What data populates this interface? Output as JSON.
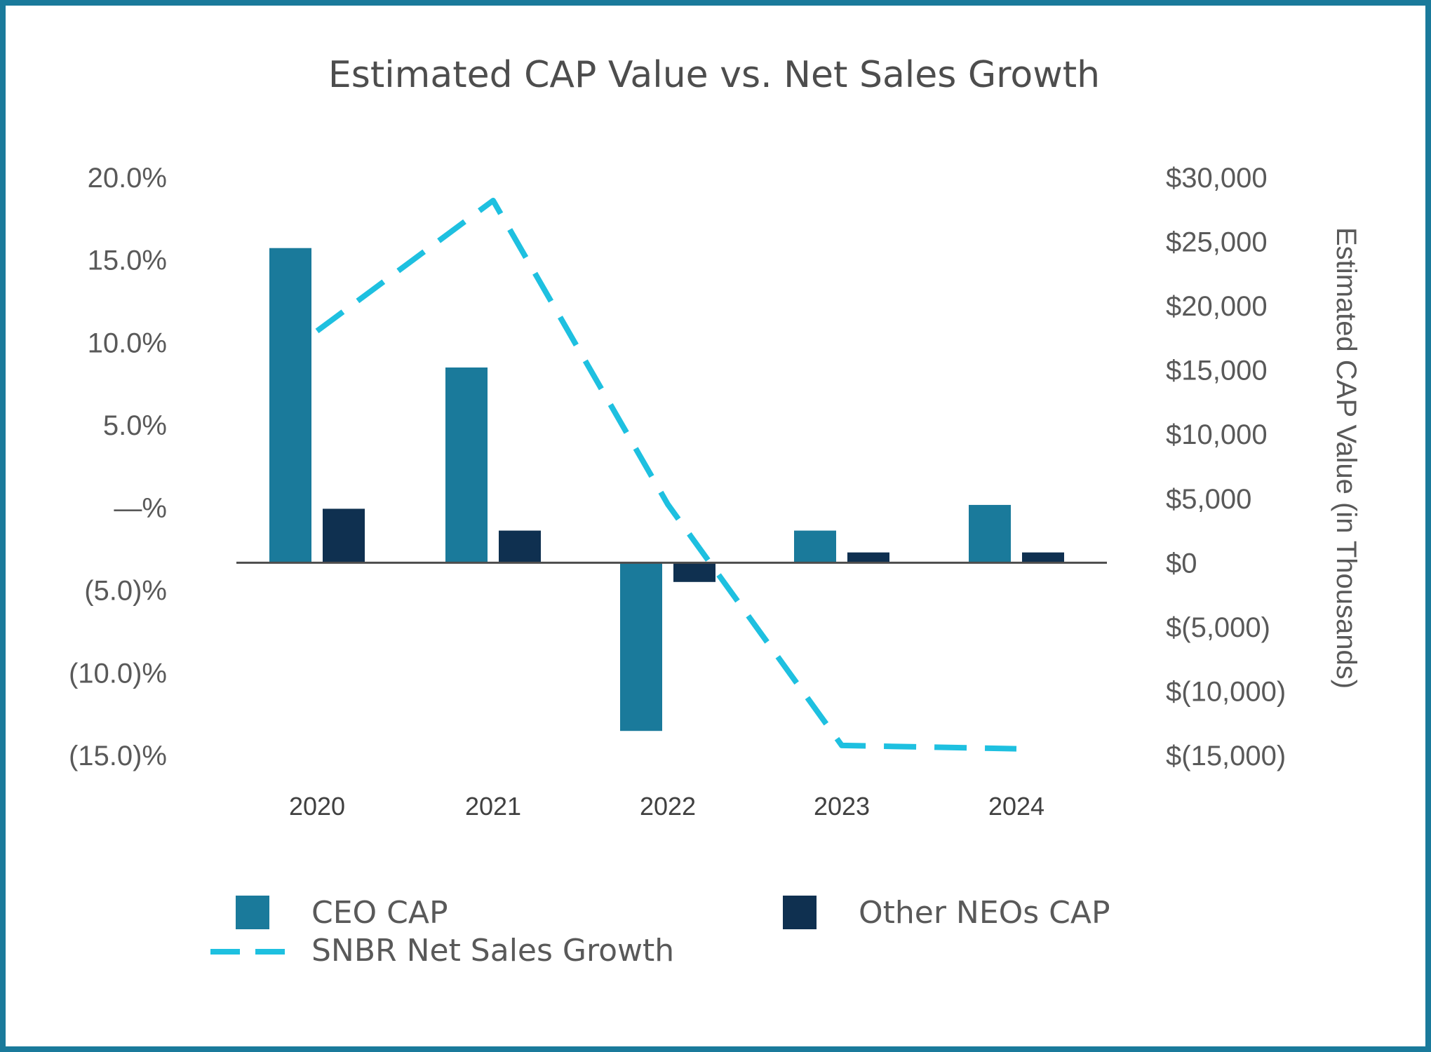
{
  "chart_data": {
    "type": "bar",
    "title": "Estimated CAP Value vs. Net Sales Growth",
    "categories": [
      "2020",
      "2021",
      "2022",
      "2023",
      "2024"
    ],
    "series": [
      {
        "name": "CEO CAP",
        "kind": "bar",
        "axis": "right",
        "color": "#1a7a9b",
        "values": [
          24500,
          15200,
          -13100,
          2500,
          4500
        ]
      },
      {
        "name": "Other NEOs CAP",
        "kind": "bar",
        "axis": "right",
        "color": "#0f3050",
        "values": [
          4200,
          2500,
          -1500,
          800,
          800
        ]
      },
      {
        "name": "SNBR Net Sales Growth",
        "kind": "dashed-line",
        "axis": "left",
        "color": "#1ec0e0",
        "values": [
          10.7,
          18.6,
          0.2,
          -14.4,
          -14.6
        ]
      }
    ],
    "y_left": {
      "range": [
        -15,
        20
      ],
      "ticks": [
        20,
        15,
        10,
        5,
        0,
        -5,
        -10,
        -15
      ],
      "tick_labels": [
        "20.0%",
        "15.0%",
        "10.0%",
        "5.0%",
        "—%",
        "(5.0)%",
        "(10.0)%",
        "(15.0)%"
      ]
    },
    "y_right": {
      "label": "Estimated CAP Value (in Thousands)",
      "range": [
        -15000,
        30000
      ],
      "ticks": [
        30000,
        25000,
        20000,
        15000,
        10000,
        5000,
        0,
        -5000,
        -10000,
        -15000
      ],
      "tick_labels": [
        "$30,000",
        "$25,000",
        "$20,000",
        "$15,000",
        "$10,000",
        "$5,000",
        "$0",
        "$(5,000)",
        "$(10,000)",
        "$(15,000)"
      ]
    },
    "legend": {
      "placement": "bottom",
      "entries": [
        "CEO CAP",
        "Other NEOs CAP",
        "SNBR Net Sales Growth"
      ]
    },
    "grid": false
  }
}
